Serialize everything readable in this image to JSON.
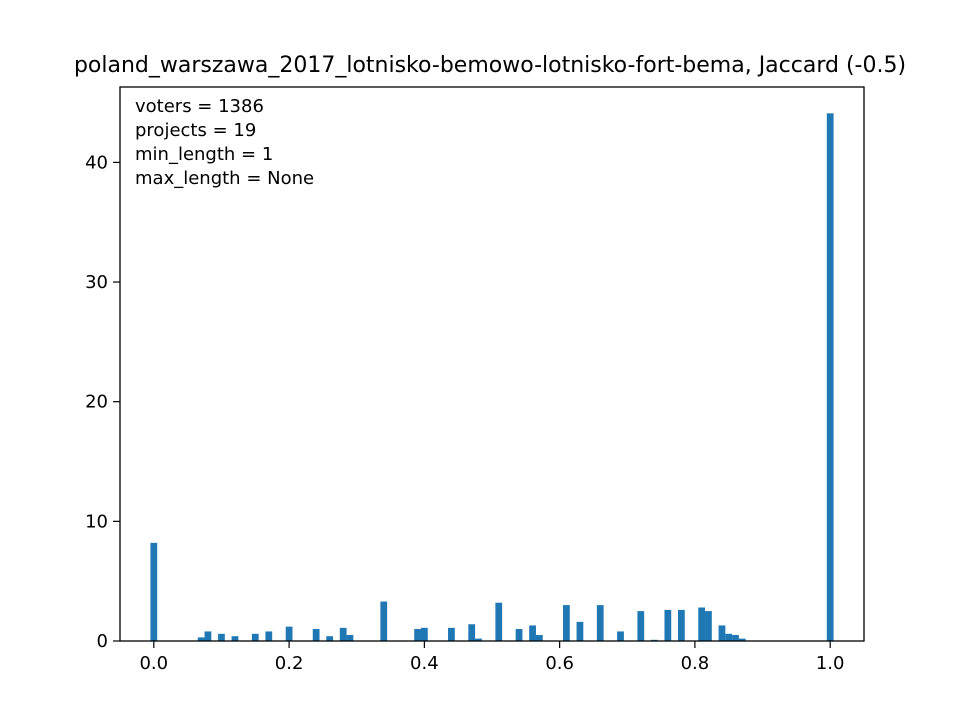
{
  "chart_data": {
    "type": "bar",
    "title": "poland_warszawa_2017_lotnisko-bemowo-lotnisko-fort-bema, Jaccard (-0.5)",
    "xlabel": "",
    "ylabel": "",
    "xlim": [
      -0.05,
      1.05
    ],
    "ylim": [
      0,
      46.3
    ],
    "xticks": [
      0.0,
      0.2,
      0.4,
      0.6,
      0.8,
      1.0
    ],
    "xtick_labels": [
      "0.0",
      "0.2",
      "0.4",
      "0.6",
      "0.8",
      "1.0"
    ],
    "yticks": [
      0,
      10,
      20,
      30,
      40
    ],
    "ytick_labels": [
      "0",
      "10",
      "20",
      "30",
      "40"
    ],
    "bin_width": 0.01,
    "color": "#1f77b4",
    "grid": false,
    "annotations": [
      "voters = 1386",
      "projects = 19",
      "min_length = 1",
      "max_length = None"
    ],
    "bins": [
      {
        "x": 0.0,
        "value": 8.2
      },
      {
        "x": 0.07,
        "value": 0.3
      },
      {
        "x": 0.08,
        "value": 0.8
      },
      {
        "x": 0.1,
        "value": 0.6
      },
      {
        "x": 0.12,
        "value": 0.4
      },
      {
        "x": 0.15,
        "value": 0.6
      },
      {
        "x": 0.17,
        "value": 0.8
      },
      {
        "x": 0.2,
        "value": 1.2
      },
      {
        "x": 0.24,
        "value": 1.0
      },
      {
        "x": 0.26,
        "value": 0.4
      },
      {
        "x": 0.28,
        "value": 1.1
      },
      {
        "x": 0.29,
        "value": 0.5
      },
      {
        "x": 0.34,
        "value": 3.3
      },
      {
        "x": 0.39,
        "value": 1.0
      },
      {
        "x": 0.4,
        "value": 1.1
      },
      {
        "x": 0.44,
        "value": 1.1
      },
      {
        "x": 0.47,
        "value": 1.4
      },
      {
        "x": 0.48,
        "value": 0.2
      },
      {
        "x": 0.51,
        "value": 3.2
      },
      {
        "x": 0.54,
        "value": 1.0
      },
      {
        "x": 0.56,
        "value": 1.3
      },
      {
        "x": 0.57,
        "value": 0.5
      },
      {
        "x": 0.61,
        "value": 3.0
      },
      {
        "x": 0.63,
        "value": 1.6
      },
      {
        "x": 0.66,
        "value": 3.0
      },
      {
        "x": 0.69,
        "value": 0.8
      },
      {
        "x": 0.72,
        "value": 2.5
      },
      {
        "x": 0.74,
        "value": 0.1
      },
      {
        "x": 0.76,
        "value": 2.6
      },
      {
        "x": 0.78,
        "value": 2.6
      },
      {
        "x": 0.81,
        "value": 2.8
      },
      {
        "x": 0.82,
        "value": 2.5
      },
      {
        "x": 0.84,
        "value": 1.3
      },
      {
        "x": 0.85,
        "value": 0.6
      },
      {
        "x": 0.86,
        "value": 0.5
      },
      {
        "x": 0.87,
        "value": 0.2
      },
      {
        "x": 1.0,
        "value": 44.1
      }
    ]
  }
}
